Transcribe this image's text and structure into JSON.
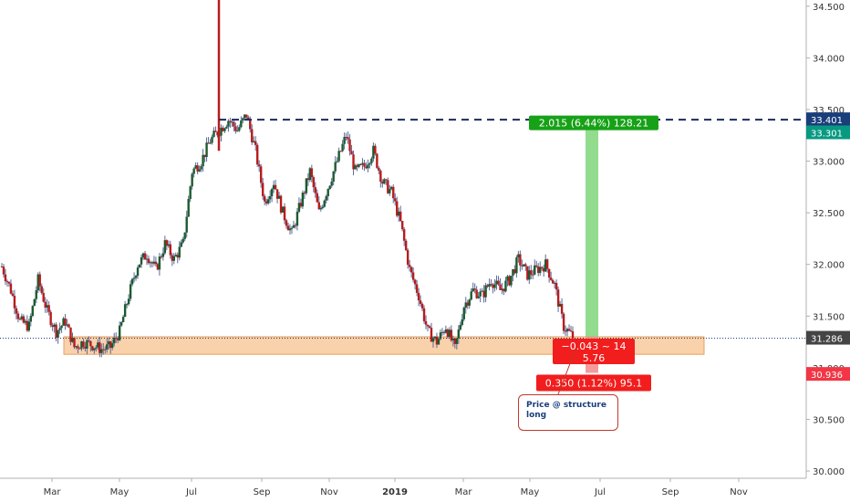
{
  "chart_data": {
    "type": "candlestick",
    "y_axis": {
      "position": "right",
      "ticks": [
        "34.500",
        "34.000",
        "33.500",
        "33.000",
        "32.500",
        "32.000",
        "31.500",
        "31.000",
        "30.500",
        "30.000"
      ],
      "range": [
        29.93,
        34.56
      ]
    },
    "x_axis": {
      "ticks": [
        "Mar",
        "May",
        "Jul",
        "Sep",
        "Nov",
        "2019",
        "Mar",
        "May",
        "Jul",
        "Sep",
        "Nov"
      ],
      "bold_tick": "2019"
    },
    "price_series": {
      "name": "",
      "values": [
        31.98,
        31.75,
        31.45,
        31.4,
        31.85,
        31.55,
        31.35,
        31.45,
        31.2,
        31.25,
        31.22,
        31.18,
        31.2,
        31.35,
        31.7,
        32.0,
        32.1,
        31.95,
        32.2,
        32.05,
        32.2,
        32.9,
        33.0,
        33.2,
        33.3,
        33.4,
        33.3,
        33.45,
        33.1,
        32.6,
        32.8,
        32.5,
        32.3,
        32.6,
        32.9,
        32.5,
        32.75,
        33.0,
        33.25,
        32.9,
        32.95,
        33.1,
        32.8,
        32.7,
        32.4,
        31.95,
        31.7,
        31.35,
        31.25,
        31.4,
        31.18,
        31.6,
        31.75,
        31.7,
        31.85,
        31.75,
        31.85,
        32.05,
        31.9,
        31.95,
        32.0,
        31.8,
        31.4,
        31.3
      ],
      "candle_spacing": 8,
      "spike_high": 34.56,
      "spike_index": 24
    },
    "support_zone": {
      "low": 31.13,
      "high": 31.3
    },
    "resistance_level": 33.401,
    "price_labels": [
      {
        "value": "33.401",
        "color": "#1a3e7a"
      },
      {
        "value": "33.301",
        "color": "#089981"
      },
      {
        "value": "31.286",
        "color": "#444444"
      },
      {
        "value": "30.936",
        "color": "#f23645"
      }
    ],
    "position_tool": {
      "entry": 31.3,
      "target": 33.3,
      "stop": 30.95,
      "target_label": "2.015 (6.44%) 128.21",
      "stop_label": "0.350 (1.12%) 95.1",
      "center_label_line1": "−0.043 ~ 14",
      "center_label_line2": "5.76"
    },
    "annotation": {
      "line1": "Price @ structure",
      "line2": "long"
    }
  }
}
